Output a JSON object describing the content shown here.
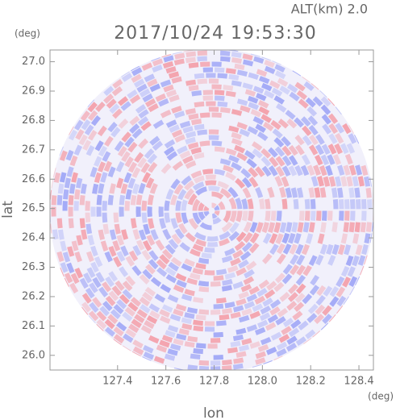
{
  "chart_data": {
    "type": "radar-image",
    "title": "2017/10/24 19:53:30",
    "altitude_label": "ALT(km) 2.0",
    "x_label": "lon",
    "y_label": "lat",
    "x_unit": "(deg)",
    "y_unit": "(deg)",
    "xlim": [
      127.12,
      128.46
    ],
    "ylim": [
      25.95,
      27.04
    ],
    "xticks": [
      127.4,
      127.6,
      127.8,
      {
        "value": 128.0,
        "label": "128.0"
      },
      128.2,
      128.4
    ],
    "yticks": [
      {
        "value": 26.0,
        "label": "26.0"
      },
      26.1,
      26.2,
      26.3,
      26.4,
      26.5,
      26.6,
      26.7,
      26.8,
      26.9,
      {
        "value": 27.0,
        "label": "27.0"
      }
    ]
  }
}
